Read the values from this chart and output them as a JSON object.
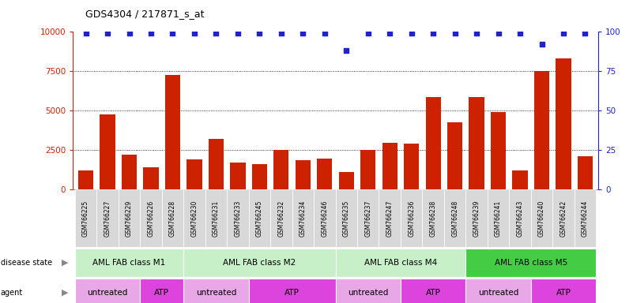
{
  "title": "GDS4304 / 217871_s_at",
  "samples": [
    "GSM766225",
    "GSM766227",
    "GSM766229",
    "GSM766226",
    "GSM766228",
    "GSM766230",
    "GSM766231",
    "GSM766233",
    "GSM766245",
    "GSM766232",
    "GSM766234",
    "GSM766246",
    "GSM766235",
    "GSM766237",
    "GSM766247",
    "GSM766236",
    "GSM766238",
    "GSM766248",
    "GSM766239",
    "GSM766241",
    "GSM766243",
    "GSM766240",
    "GSM766242",
    "GSM766244"
  ],
  "counts": [
    1200,
    4750,
    2200,
    1400,
    7250,
    1900,
    3200,
    1700,
    1600,
    2500,
    1850,
    1950,
    1100,
    2500,
    2950,
    2900,
    5850,
    4250,
    5850,
    4900,
    1200,
    7500,
    8300,
    2100
  ],
  "percentile_ranks": [
    99,
    99,
    99,
    99,
    99,
    99,
    99,
    99,
    99,
    99,
    99,
    99,
    88,
    99,
    99,
    99,
    99,
    99,
    99,
    99,
    99,
    92,
    99,
    99
  ],
  "disease_state_groups": [
    {
      "label": "AML FAB class M1",
      "start": 0,
      "end": 5,
      "color": "#c8f0c8"
    },
    {
      "label": "AML FAB class M2",
      "start": 5,
      "end": 12,
      "color": "#c8f0c8"
    },
    {
      "label": "AML FAB class M4",
      "start": 12,
      "end": 18,
      "color": "#c8f0c8"
    },
    {
      "label": "AML FAB class M5",
      "start": 18,
      "end": 24,
      "color": "#44cc44"
    }
  ],
  "agent_groups": [
    {
      "label": "untreated",
      "start": 0,
      "end": 3,
      "color": "#e8a8e8"
    },
    {
      "label": "ATP",
      "start": 3,
      "end": 5,
      "color": "#dd44dd"
    },
    {
      "label": "untreated",
      "start": 5,
      "end": 8,
      "color": "#e8a8e8"
    },
    {
      "label": "ATP",
      "start": 8,
      "end": 12,
      "color": "#dd44dd"
    },
    {
      "label": "untreated",
      "start": 12,
      "end": 15,
      "color": "#e8a8e8"
    },
    {
      "label": "ATP",
      "start": 15,
      "end": 18,
      "color": "#dd44dd"
    },
    {
      "label": "untreated",
      "start": 18,
      "end": 21,
      "color": "#e8a8e8"
    },
    {
      "label": "ATP",
      "start": 21,
      "end": 24,
      "color": "#dd44dd"
    }
  ],
  "ylim_left": [
    0,
    10000
  ],
  "ylim_right": [
    0,
    100
  ],
  "yticks_left": [
    0,
    2500,
    5000,
    7500,
    10000
  ],
  "yticks_right": [
    0,
    25,
    50,
    75,
    100
  ],
  "bar_color": "#cc2200",
  "dot_color": "#2222cc",
  "background_color": "#ffffff",
  "tick_bg_color": "#d8d8d8",
  "legend_count_color": "#cc2200",
  "legend_dot_color": "#2222cc"
}
